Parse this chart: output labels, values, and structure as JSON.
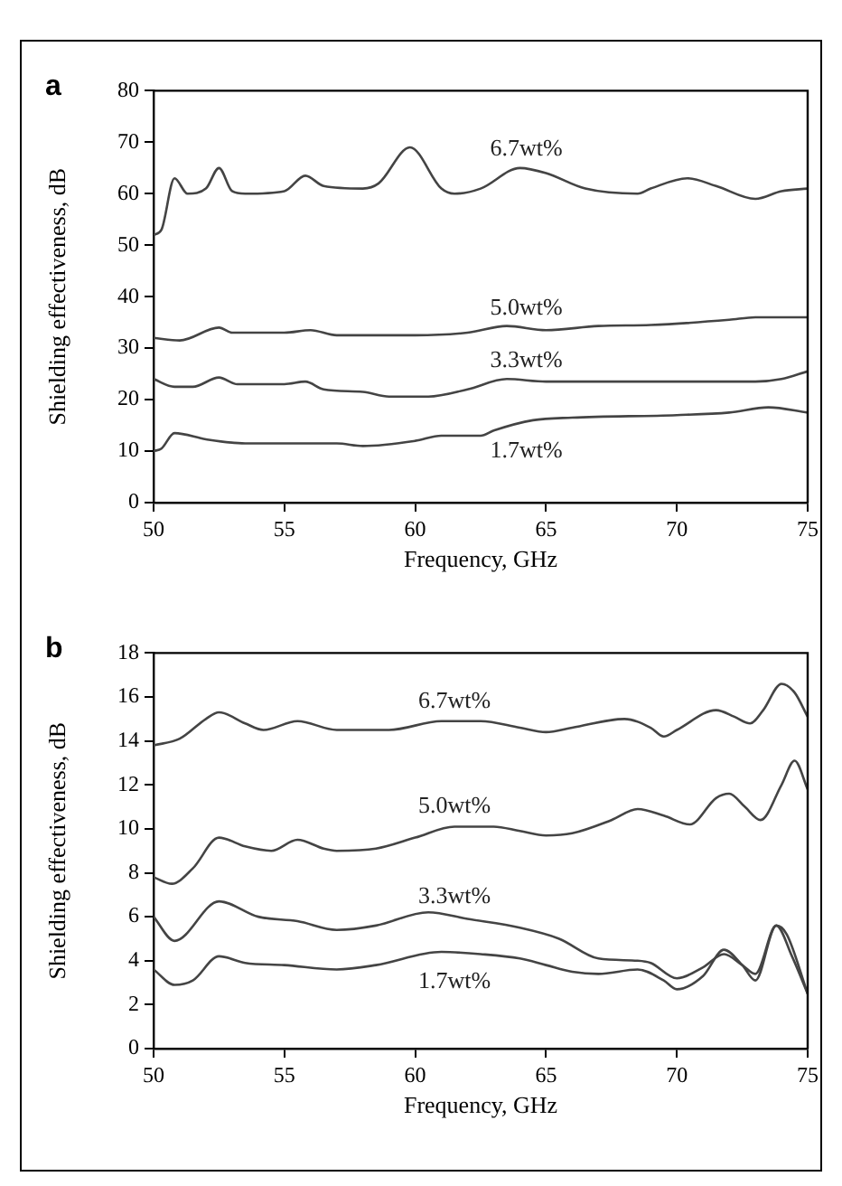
{
  "chart_data": [
    {
      "type": "line",
      "title": "a",
      "xlabel": "Frequency, GHz",
      "ylabel": "Shielding effectiveness, dB",
      "xlim": [
        50,
        75
      ],
      "xticks": [
        50,
        55,
        60,
        65,
        70,
        75
      ],
      "ylim": [
        0,
        80
      ],
      "yticks": [
        0,
        10,
        20,
        30,
        40,
        50,
        60,
        70,
        80
      ],
      "grid": false,
      "legend": false,
      "marker": "none",
      "line_style": "solid",
      "series": [
        {
          "name": "6.7wt%",
          "color": "#444444",
          "x": [
            50,
            50.3,
            50.8,
            51.3,
            52,
            52.5,
            53,
            53.5,
            55,
            55.8,
            56.5,
            58,
            58.6,
            59.8,
            61,
            61.5,
            62.5,
            64,
            65,
            66.5,
            68.5,
            69,
            70.4,
            71.5,
            73,
            74,
            75
          ],
          "values": [
            52,
            53,
            63,
            60,
            61,
            65,
            60.5,
            60,
            60.5,
            63.5,
            61.5,
            61,
            62,
            69,
            61,
            60,
            61,
            65,
            64,
            61,
            60,
            61,
            63,
            61.5,
            59,
            60.5,
            61
          ]
        },
        {
          "name": "5.0wt%",
          "color": "#444444",
          "x": [
            50,
            51,
            52.5,
            53,
            55,
            56,
            57,
            60,
            62,
            63.5,
            65,
            67,
            69,
            72,
            73,
            75
          ],
          "values": [
            32,
            31.5,
            34,
            33,
            33,
            33.5,
            32.5,
            32.5,
            33,
            34.3,
            33.5,
            34.3,
            34.5,
            35.5,
            36,
            36
          ]
        },
        {
          "name": "3.3wt%",
          "color": "#444444",
          "x": [
            50,
            50.8,
            51.5,
            52.5,
            53.2,
            55,
            55.8,
            56.5,
            58,
            59,
            60.5,
            62,
            63.5,
            65,
            68,
            70,
            73,
            74,
            75
          ],
          "values": [
            24,
            22.5,
            22.5,
            24.3,
            23,
            23,
            23.5,
            22,
            21.5,
            20.6,
            20.6,
            22,
            24,
            23.5,
            23.5,
            23.5,
            23.5,
            24,
            25.5
          ]
        },
        {
          "name": "1.7wt%",
          "color": "#444444",
          "x": [
            50,
            50.3,
            50.8,
            52,
            53.5,
            57,
            58,
            60,
            61,
            62.5,
            63,
            64.5,
            66,
            70,
            72,
            73.5,
            75
          ],
          "values": [
            10,
            10.5,
            13.5,
            12.3,
            11.5,
            11.5,
            11,
            12,
            13,
            13,
            14,
            16,
            16.5,
            17,
            17.5,
            18.5,
            17.5
          ]
        }
      ],
      "data_labels": false
    },
    {
      "type": "line",
      "title": "b",
      "xlabel": "Frequency, GHz",
      "ylabel": "Shielding effectiveness, dB",
      "xlim": [
        50,
        75
      ],
      "xticks": [
        50,
        55,
        60,
        65,
        70,
        75
      ],
      "ylim": [
        0,
        18
      ],
      "yticks": [
        0,
        2,
        4,
        6,
        8,
        10,
        12,
        14,
        16,
        18
      ],
      "grid": false,
      "legend": false,
      "marker": "none",
      "line_style": "solid",
      "series": [
        {
          "name": "6.7wt%",
          "color": "#444444",
          "x": [
            50,
            51,
            52,
            52.5,
            53.5,
            54.2,
            55.5,
            57,
            59,
            61,
            62.5,
            64,
            65,
            66,
            68,
            69,
            69.5,
            70,
            71.5,
            72.2,
            72.8,
            73.3,
            74,
            74.5,
            75
          ],
          "values": [
            13.8,
            14.1,
            15,
            15.3,
            14.8,
            14.5,
            14.9,
            14.5,
            14.5,
            14.9,
            14.9,
            14.6,
            14.4,
            14.6,
            15,
            14.6,
            14.2,
            14.5,
            15.4,
            15.1,
            14.8,
            15.4,
            16.6,
            16.2,
            15.1
          ]
        },
        {
          "name": "5.0wt%",
          "color": "#444444",
          "x": [
            50,
            50.7,
            51.5,
            52.5,
            53.5,
            54.5,
            55.5,
            56.5,
            57,
            58.5,
            60,
            61.5,
            63,
            64,
            65,
            66,
            67.5,
            68.5,
            69.5,
            70.5,
            71.5,
            72,
            72.6,
            73.2,
            74,
            74.5,
            75
          ],
          "values": [
            7.8,
            7.5,
            8.2,
            9.6,
            9.2,
            9,
            9.5,
            9.1,
            9,
            9.1,
            9.6,
            10.1,
            10.1,
            9.9,
            9.7,
            9.8,
            10.4,
            10.9,
            10.6,
            10.2,
            11.4,
            11.6,
            11,
            10.4,
            12,
            13.1,
            11.8
          ]
        },
        {
          "name": "3.3wt%",
          "color": "#444444",
          "x": [
            50,
            50.8,
            52.5,
            54,
            55.5,
            57,
            58.5,
            60.5,
            62,
            64,
            65.5,
            67,
            68.5,
            69,
            70,
            71,
            71.8,
            72.5,
            73,
            73.8,
            74.2,
            75
          ],
          "values": [
            6,
            4.9,
            6.7,
            6,
            5.8,
            5.4,
            5.6,
            6.2,
            5.9,
            5.5,
            5,
            4.1,
            4,
            3.9,
            3.2,
            3.7,
            4.3,
            3.8,
            3.4,
            5.6,
            5.2,
            2.5
          ]
        },
        {
          "name": "1.7wt%",
          "color": "#444444",
          "x": [
            50,
            50.8,
            51.5,
            52.5,
            53.5,
            55,
            57,
            58.5,
            61,
            62.5,
            64,
            65,
            66,
            67,
            68.5,
            69.5,
            70,
            71,
            71.8,
            72.5,
            73,
            73.8,
            74.4,
            75
          ],
          "values": [
            3.6,
            2.9,
            3.1,
            4.2,
            3.9,
            3.8,
            3.6,
            3.8,
            4.4,
            4.3,
            4.1,
            3.8,
            3.5,
            3.4,
            3.6,
            3.1,
            2.7,
            3.3,
            4.5,
            3.8,
            3.1,
            5.6,
            4.2,
            2.5
          ]
        }
      ],
      "data_labels": false
    }
  ]
}
